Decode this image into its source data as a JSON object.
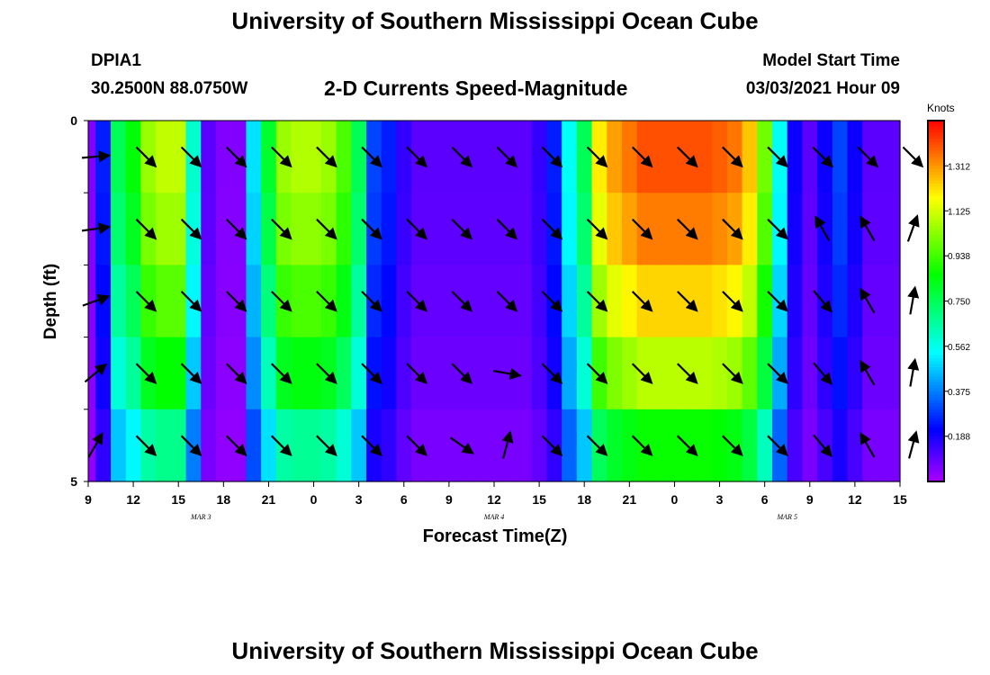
{
  "header": {
    "title": "University of Southern Mississippi Ocean Cube",
    "station_id": "DPIA1",
    "station_coords": "30.2500N 88.0750W",
    "subtitle": "2-D Currents Speed-Magnitude",
    "model_start_label": "Model Start Time",
    "model_start_value": "03/03/2021 Hour 09"
  },
  "footer": {
    "title": "University of Southern Mississippi Ocean Cube"
  },
  "chart_data": {
    "type": "heatmap",
    "title": "2-D Currents Speed-Magnitude",
    "xlabel": "Forecast Time(Z)",
    "ylabel": "Depth (ft)",
    "units": "Knots",
    "x_ticks": [
      "9",
      "12",
      "15",
      "18",
      "21",
      "0",
      "3",
      "6",
      "9",
      "12",
      "15",
      "18",
      "21",
      "0",
      "3",
      "6",
      "9",
      "12",
      "15"
    ],
    "x_range_hours": [
      0,
      54
    ],
    "date_labels": [
      {
        "label": "MAR 3",
        "hour": 7.5
      },
      {
        "label": "MAR 4",
        "hour": 27
      },
      {
        "label": "MAR 5",
        "hour": 46.5
      }
    ],
    "y_ticks": [
      "0",
      "5"
    ],
    "y_range": [
      0,
      5
    ],
    "depth_layers": [
      0.5,
      1.5,
      2.5,
      3.5,
      4.5
    ],
    "colorbar": {
      "ticks": [
        "0.188",
        "0.375",
        "0.562",
        "0.750",
        "0.938",
        "1.125",
        "1.312"
      ],
      "range": [
        0,
        1.5
      ]
    },
    "time_hours": [
      0,
      1,
      2,
      3,
      4,
      5,
      6,
      7,
      8,
      9,
      10,
      11,
      12,
      13,
      14,
      15,
      16,
      17,
      18,
      19,
      20,
      21,
      22,
      23,
      24,
      25,
      26,
      27,
      28,
      29,
      30,
      31,
      32,
      33,
      34,
      35,
      36,
      37,
      38,
      39,
      40,
      41,
      42,
      43,
      44,
      45,
      46,
      47,
      48,
      49,
      50,
      51,
      52,
      53,
      54
    ],
    "surface_speed": [
      0.05,
      0.25,
      0.75,
      0.85,
      1.05,
      1.1,
      1.1,
      0.6,
      0.1,
      0.05,
      0.05,
      0.5,
      0.8,
      1.05,
      1.08,
      1.08,
      1.05,
      0.95,
      0.75,
      0.3,
      0.25,
      0.15,
      0.1,
      0.1,
      0.1,
      0.1,
      0.1,
      0.1,
      0.1,
      0.1,
      0.15,
      0.25,
      0.55,
      0.75,
      1.2,
      1.3,
      1.35,
      1.4,
      1.4,
      1.4,
      1.4,
      1.4,
      1.38,
      1.35,
      1.25,
      1.0,
      0.55,
      0.2,
      0.1,
      0.2,
      0.3,
      0.2,
      0.1,
      0.1,
      0.1
    ],
    "depth_factor": [
      1.0,
      0.96,
      0.88,
      0.78,
      0.62
    ],
    "bottom_offset": [
      0.15,
      0.15,
      0.15,
      0.2,
      0.35
    ],
    "vector_hours": [
      0,
      3,
      6,
      9,
      12,
      15,
      18,
      21,
      24,
      27,
      30,
      33,
      36,
      39,
      42,
      45,
      48,
      51,
      54
    ],
    "vector_dirs_deg": [
      [
        85,
        135,
        135,
        135,
        135,
        135,
        135,
        135,
        135,
        135,
        135,
        135,
        135,
        135,
        135,
        135,
        135,
        135,
        135
      ],
      [
        82,
        135,
        135,
        135,
        135,
        135,
        135,
        135,
        135,
        135,
        135,
        135,
        135,
        135,
        135,
        135,
        330,
        330,
        20
      ],
      [
        70,
        135,
        135,
        135,
        135,
        135,
        135,
        135,
        135,
        135,
        135,
        135,
        135,
        135,
        135,
        135,
        140,
        330,
        10
      ],
      [
        50,
        135,
        135,
        135,
        135,
        135,
        135,
        135,
        135,
        100,
        135,
        135,
        135,
        135,
        135,
        135,
        140,
        330,
        10
      ],
      [
        30,
        135,
        135,
        135,
        135,
        135,
        135,
        135,
        125,
        15,
        135,
        135,
        135,
        135,
        135,
        135,
        140,
        330,
        15
      ]
    ]
  }
}
